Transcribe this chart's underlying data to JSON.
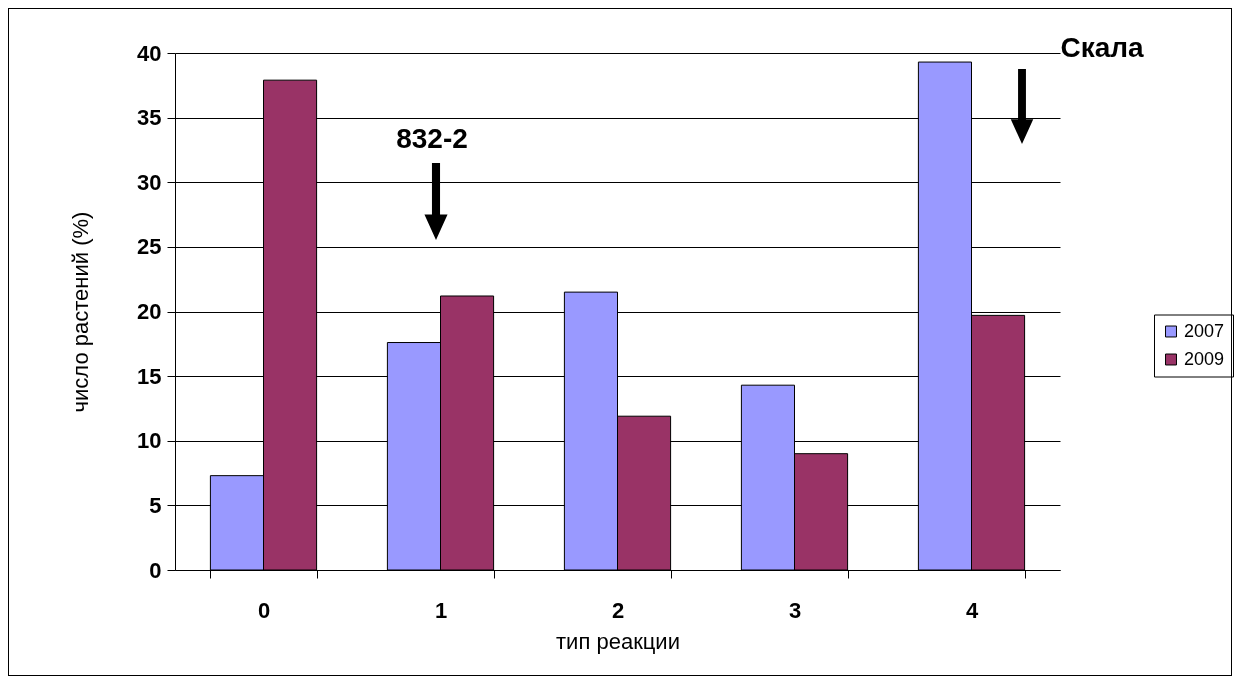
{
  "chart_data": {
    "type": "bar",
    "xlabel": "тип реакции",
    "ylabel": "число растений (%)",
    "categories": [
      "0",
      "1",
      "2",
      "3",
      "4"
    ],
    "series": [
      {
        "name": "2007",
        "color": "#9999ff",
        "values": [
          7.3,
          17.6,
          21.5,
          14.3,
          39.3
        ]
      },
      {
        "name": "2009",
        "color": "#993366",
        "values": [
          37.9,
          21.2,
          11.9,
          9.0,
          19.7
        ]
      }
    ],
    "ylim": [
      0,
      40
    ],
    "yticks": [
      0,
      5,
      10,
      15,
      20,
      25,
      30,
      35,
      40
    ],
    "grid": "y",
    "legend": "right",
    "annotations": [
      "832-2",
      "Скала"
    ]
  }
}
